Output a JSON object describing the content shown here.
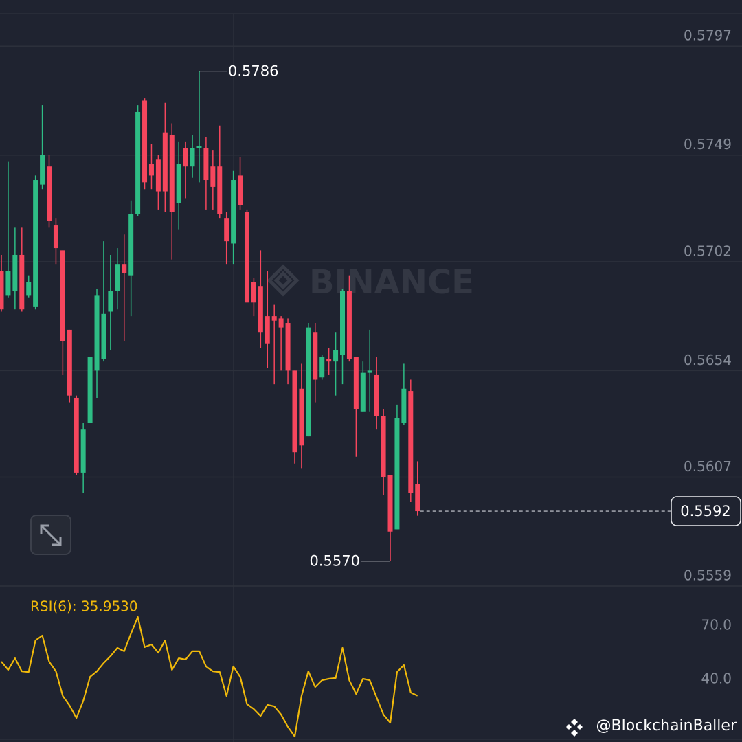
{
  "chart_data": [
    {
      "type": "candlestick",
      "open": [
        0.5698,
        0.5687,
        0.5689,
        0.5705,
        0.5687,
        0.5682,
        0.5736,
        0.5744,
        0.5718,
        0.5707,
        0.5672,
        0.5642,
        0.5609,
        0.5631,
        0.5654,
        0.5659,
        0.568,
        0.5689,
        0.5701,
        0.5696,
        0.5723,
        0.5773,
        0.5745,
        0.5747,
        0.5759,
        0.5758,
        0.5728,
        0.5752,
        0.5744,
        0.5752,
        0.5752,
        0.5744,
        0.5744,
        0.5721,
        0.571,
        0.574,
        0.5724,
        0.5693,
        0.5691,
        0.5678,
        0.5678,
        0.5677,
        0.5675,
        0.5654,
        0.5646,
        0.5625,
        0.5671,
        0.5651,
        0.5659,
        0.5658,
        0.5661,
        0.5689,
        0.566,
        0.5636,
        0.5653,
        0.5652,
        0.5634,
        0.5608,
        0.5584,
        0.5631,
        0.5645,
        0.5604
      ],
      "high": [
        0.5705,
        0.5746,
        0.5717,
        0.5717,
        0.5696,
        0.574,
        0.5771,
        0.5749,
        0.5721,
        0.5707,
        0.5672,
        0.5643,
        0.5631,
        0.566,
        0.569,
        0.5711,
        0.5705,
        0.5708,
        0.5714,
        0.5729,
        0.5771,
        0.5774,
        0.5754,
        0.5749,
        0.5772,
        0.5763,
        0.5755,
        0.5755,
        0.5758,
        0.5786,
        0.5757,
        0.5751,
        0.5762,
        0.5724,
        0.5742,
        0.5748,
        0.5725,
        0.5695,
        0.5707,
        0.5698,
        0.5683,
        0.5678,
        0.5677,
        0.5654,
        0.5657,
        0.5675,
        0.5675,
        0.5661,
        0.5664,
        0.5671,
        0.569,
        0.5696,
        0.566,
        0.5658,
        0.5672,
        0.566,
        0.5637,
        0.5608,
        0.5639,
        0.5657,
        0.565,
        0.5614
      ],
      "low": [
        0.568,
        0.5686,
        0.5681,
        0.568,
        0.5686,
        0.5681,
        0.5734,
        0.5717,
        0.5701,
        0.5652,
        0.564,
        0.5608,
        0.56,
        0.5631,
        0.5642,
        0.5658,
        0.5663,
        0.5681,
        0.5667,
        0.5678,
        0.5722,
        0.5734,
        0.5734,
        0.5725,
        0.5724,
        0.5703,
        0.5716,
        0.573,
        0.5739,
        0.5737,
        0.5725,
        0.5725,
        0.5721,
        0.5701,
        0.5701,
        0.5725,
        0.5684,
        0.5678,
        0.5664,
        0.5655,
        0.5648,
        0.5654,
        0.5648,
        0.5613,
        0.5611,
        0.5625,
        0.564,
        0.565,
        0.5652,
        0.5643,
        0.5648,
        0.5658,
        0.5616,
        0.5636,
        0.5636,
        0.5628,
        0.5599,
        0.557,
        0.5584,
        0.563,
        0.5596,
        0.559
      ],
      "close": [
        0.5681,
        0.5698,
        0.5705,
        0.5681,
        0.5693,
        0.5738,
        0.5749,
        0.572,
        0.5708,
        0.5667,
        0.5643,
        0.5609,
        0.5628,
        0.566,
        0.5687,
        0.5679,
        0.5689,
        0.5701,
        0.5697,
        0.5723,
        0.5768,
        0.5737,
        0.574,
        0.5733,
        0.5733,
        0.5724,
        0.5745,
        0.5744,
        0.5752,
        0.5753,
        0.5738,
        0.5735,
        0.5723,
        0.5711,
        0.5738,
        0.5727,
        0.5684,
        0.5684,
        0.5671,
        0.5666,
        0.5676,
        0.5673,
        0.5654,
        0.5618,
        0.5621,
        0.5673,
        0.565,
        0.566,
        0.5658,
        0.5663,
        0.5689,
        0.5659,
        0.5637,
        0.5653,
        0.5654,
        0.5634,
        0.5607,
        0.5583,
        0.5633,
        0.5646,
        0.56,
        0.5592
      ],
      "up_color": "#2ebd85",
      "down_color": "#f6465d",
      "ylim": [
        0.5559,
        0.5811
      ],
      "yticks": [
        0.5797,
        0.5749,
        0.5702,
        0.5654,
        0.5607,
        0.5559
      ],
      "grid": true,
      "high_label": "0.5786",
      "low_label": "0.5570",
      "current_price": 0.5592,
      "watermark": "BINANCE"
    },
    {
      "type": "line",
      "title": "RSI(6): 35.9530",
      "series": [
        {
          "name": "RSI(6)",
          "color": "#f0b90b",
          "values": [
            55.0,
            50.4,
            56.9,
            49.6,
            49.2,
            66.9,
            69.6,
            55.0,
            49.6,
            35.8,
            30.4,
            23.5,
            33.1,
            46.5,
            49.6,
            54.2,
            58.1,
            62.7,
            60.8,
            70.8,
            80.0,
            63.1,
            64.6,
            60.0,
            66.9,
            50.4,
            56.9,
            56.2,
            60.8,
            60.8,
            52.3,
            49.6,
            49.2,
            35.8,
            52.3,
            46.5,
            31.2,
            28.5,
            24.6,
            30.8,
            30.0,
            25.4,
            18.5,
            13.1,
            35.8,
            49.6,
            40.8,
            44.6,
            45.4,
            45.8,
            62.7,
            44.6,
            36.9,
            45.4,
            44.6,
            35.0,
            25.4,
            20.8,
            49.2,
            53.1,
            37.7,
            35.953
          ]
        }
      ],
      "ylim": [
        10.8,
        94.6
      ],
      "yticks": [
        {
          "value": 70,
          "label": "70.0"
        },
        {
          "value": 40,
          "label": "40.0"
        }
      ],
      "grid": false
    }
  ],
  "credit": "@BlockchainBaller"
}
